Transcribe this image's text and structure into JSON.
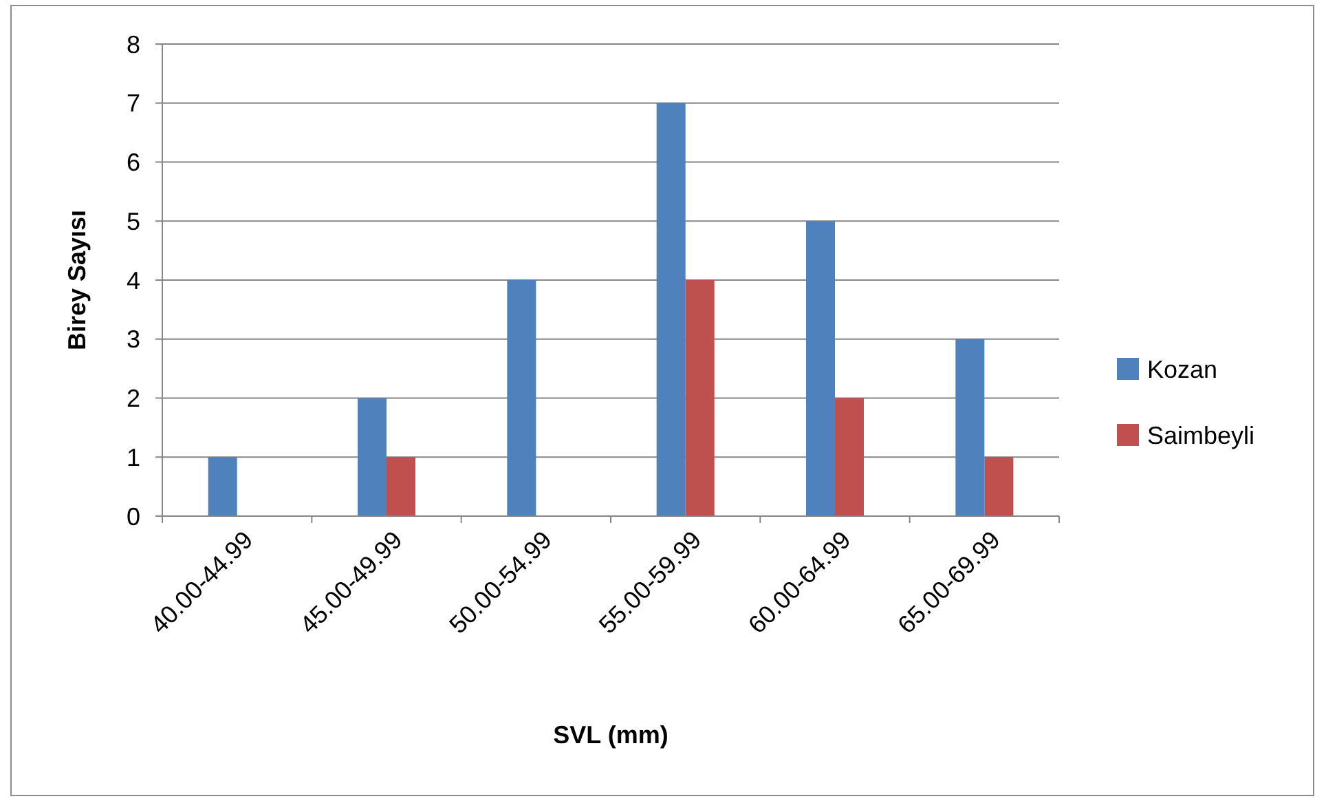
{
  "chart_data": {
    "type": "bar",
    "xlabel": "SVL (mm)",
    "ylabel": "Birey Sayısı",
    "categories": [
      "40.00-44.99",
      "45.00-49.99",
      "50.00-54.99",
      "55.00-59.99",
      "60.00-64.99",
      "65.00-69.99"
    ],
    "series": [
      {
        "name": "Kozan",
        "color": "#4f81bd",
        "values": [
          1,
          2,
          4,
          7,
          5,
          3
        ]
      },
      {
        "name": "Saimbeyli",
        "color": "#c0504d",
        "values": [
          0,
          1,
          0,
          4,
          2,
          1
        ]
      }
    ],
    "ylim": [
      0,
      8
    ],
    "yticks": [
      0,
      1,
      2,
      3,
      4,
      5,
      6,
      7,
      8
    ],
    "grid": "y",
    "legend": "right"
  }
}
